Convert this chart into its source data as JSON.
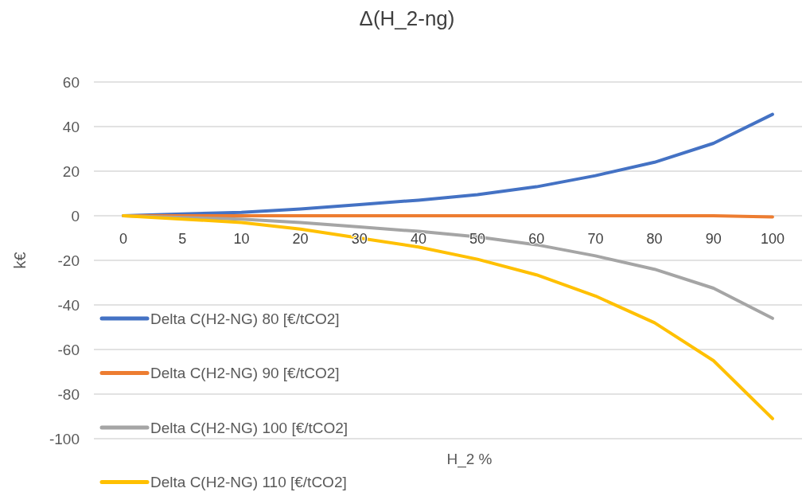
{
  "chart_data": {
    "type": "line",
    "title": "Δ(H_2-ng)",
    "xlabel": "H_2 %",
    "ylabel": "k€",
    "categories": [
      "0",
      "5",
      "10",
      "20",
      "30",
      "40",
      "50",
      "60",
      "70",
      "80",
      "90",
      "100"
    ],
    "ylim": [
      -100,
      60
    ],
    "yticks": [
      -100,
      -80,
      -60,
      -40,
      -20,
      0,
      20,
      40,
      60
    ],
    "grid": "y",
    "legend": "bottom left",
    "marker": "none",
    "line_style": "solid",
    "series": [
      {
        "name": "Delta C(H2-NG) 80 [€/tCO2]",
        "color": "#4472c4",
        "values": [
          0,
          0.8,
          1.5,
          3,
          5,
          7,
          9.5,
          13,
          18,
          24,
          32.5,
          45.5
        ]
      },
      {
        "name": "Delta C(H2-NG) 90 [€/tCO2]",
        "color": "#ed7d31",
        "values": [
          0,
          0,
          0,
          0,
          0,
          0,
          0,
          0,
          0,
          0,
          0,
          -0.5
        ]
      },
      {
        "name": "Delta C(H2-NG) 100  [€/tCO2]",
        "color": "#a5a5a5",
        "values": [
          0,
          -0.8,
          -1.5,
          -3,
          -5,
          -7,
          -9.5,
          -13,
          -18,
          -24,
          -32.5,
          -46
        ]
      },
      {
        "name": "Delta C(H2-NG) 110 [€/tCO2]",
        "color": "#ffc000",
        "values": [
          0,
          -1.5,
          -3,
          -6,
          -10,
          -14,
          -19.5,
          -26.5,
          -36,
          -48,
          -65,
          -91
        ]
      }
    ]
  }
}
